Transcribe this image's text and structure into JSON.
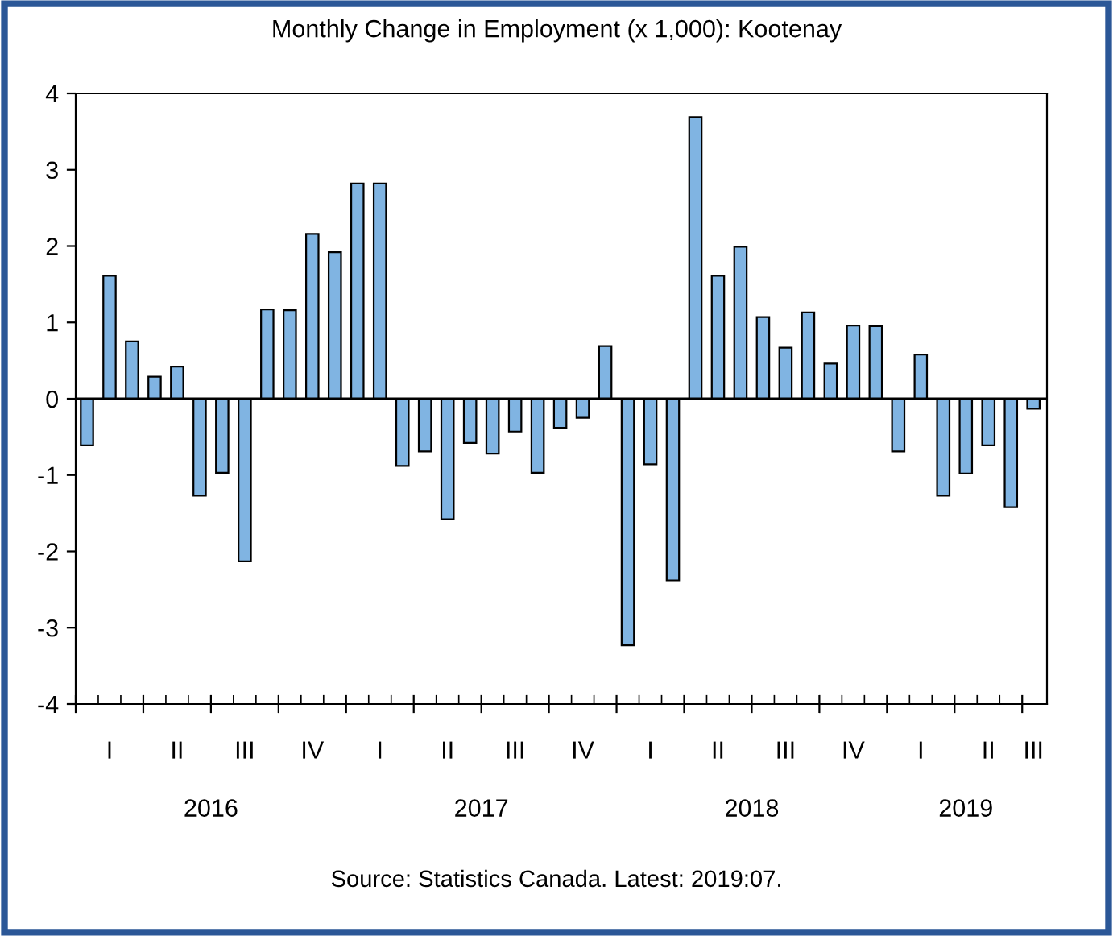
{
  "chart_data": {
    "type": "bar",
    "title": "Monthly Change in Employment (x 1,000): Kootenay",
    "categories": [
      null,
      "I",
      null,
      null,
      "II",
      null,
      null,
      "III",
      null,
      null,
      "IV",
      null,
      null,
      "I",
      null,
      null,
      "II",
      null,
      null,
      "III",
      null,
      null,
      "IV",
      null,
      null,
      "I",
      null,
      null,
      "II",
      null,
      null,
      "III",
      null,
      null,
      "IV",
      null,
      null,
      "I",
      null,
      null,
      "II",
      null,
      "III"
    ],
    "values": [
      -0.61,
      1.61,
      0.75,
      0.29,
      0.42,
      -1.27,
      -0.97,
      -2.13,
      1.17,
      1.16,
      2.16,
      1.92,
      2.82,
      2.82,
      -0.88,
      -0.69,
      -1.58,
      -0.58,
      -0.72,
      -0.43,
      -0.97,
      -0.38,
      -0.25,
      0.69,
      -3.23,
      -0.86,
      -2.38,
      3.69,
      1.61,
      1.99,
      1.07,
      0.67,
      1.13,
      0.46,
      0.96,
      0.95,
      -0.69,
      0.58,
      -1.27,
      -0.98,
      -0.61,
      -1.42,
      -0.13
    ],
    "color": "#80b4e2",
    "ylim": [
      -4,
      4
    ],
    "yticks": [
      -4,
      -3,
      -2,
      -1,
      0,
      1,
      2,
      3,
      4
    ],
    "legend": false,
    "annotations": [
      "2016",
      "2017",
      "2018",
      "2019",
      "Source: Statistics Canada. Latest: 2019:07."
    ]
  }
}
